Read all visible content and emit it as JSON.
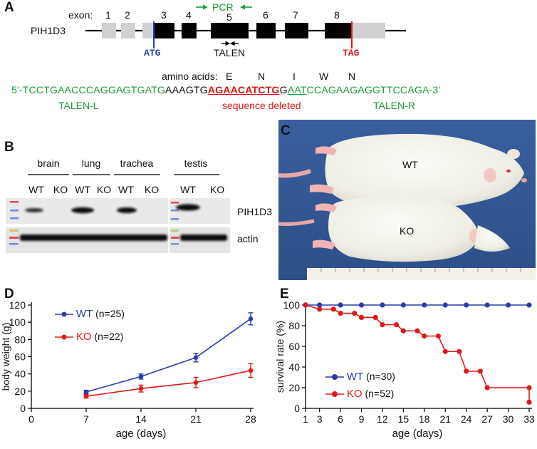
{
  "panelA": {
    "letter": "A",
    "exon_label": "exon:",
    "exon_numbers": [
      "1",
      "2",
      "3",
      "4",
      "5",
      "6",
      "7",
      "8"
    ],
    "gene": "PIH1D3",
    "pcr": "PCR",
    "talen": "TALEN",
    "atg": "ATG",
    "tag": "TAG",
    "amino_acids_label": "amino acids:",
    "amino_acids": [
      "E",
      "N",
      "I",
      "W",
      "N"
    ],
    "seq_part1": "5'-TCCTGAACCCAGGAGTGATG",
    "seq_part2": "AAAGTG",
    "seq_deleted": "AGAACATCTG",
    "seq_part3": "G",
    "seq_part4": "AAT",
    "seq_part5": "CCAGAAGAGGTTCCAGA-3'",
    "talen_l": "TALEN-L",
    "deleted_label": "sequence deleted",
    "talen_r": "TALEN-R",
    "colors": {
      "green": "#1e9a3c",
      "red": "#e01818",
      "blue": "#2a3ba8"
    }
  },
  "panelB": {
    "letter": "B",
    "tissues": [
      "brain",
      "lung",
      "trachea",
      "testis"
    ],
    "lanes": [
      "WT",
      "KO",
      "WT",
      "KO",
      "WT",
      "KO",
      "WT",
      "KO"
    ],
    "band1": "PIH1D3",
    "band2": "actin"
  },
  "panelC": {
    "letter": "C",
    "label_wt": "WT",
    "label_ko": "KO"
  },
  "panelD": {
    "letter": "D",
    "legend_wt": "WT",
    "legend_wt_n": "(n=25)",
    "legend_ko": "KO",
    "legend_ko_n": "(n=22)"
  },
  "panelE": {
    "letter": "E",
    "legend_wt": "WT",
    "legend_wt_n": "(n=30)",
    "legend_ko": "KO",
    "legend_ko_n": "(n=52)"
  },
  "chart_data": [
    {
      "type": "line",
      "xlabel": "age (days)",
      "ylabel": "body weight (g)",
      "xlim": [
        0,
        28
      ],
      "ylim": [
        0,
        120
      ],
      "xticks": [
        0,
        7,
        14,
        21,
        28
      ],
      "yticks": [
        0,
        20,
        40,
        60,
        80,
        100,
        120
      ],
      "x": [
        7,
        14,
        21,
        28
      ],
      "series": [
        {
          "name": "WT",
          "values": [
            19,
            37,
            59,
            104
          ],
          "errors": [
            2,
            3,
            5,
            7
          ],
          "color": "#2a3ba8"
        },
        {
          "name": "KO",
          "values": [
            14,
            23,
            30,
            44
          ],
          "errors": [
            2,
            4,
            6,
            8
          ],
          "color": "#e01818"
        }
      ]
    },
    {
      "type": "line",
      "step": true,
      "xlabel": "age (days)",
      "ylabel": "survival rate (%)",
      "xlim": [
        1,
        33
      ],
      "ylim": [
        0,
        100
      ],
      "xticks": [
        1,
        3,
        6,
        9,
        12,
        15,
        18,
        21,
        24,
        27,
        30,
        33
      ],
      "yticks": [
        0,
        20,
        40,
        60,
        80,
        100
      ],
      "series": [
        {
          "name": "WT",
          "color": "#2a3ba8",
          "x": [
            1,
            3,
            6,
            9,
            12,
            15,
            18,
            21,
            24,
            27,
            30,
            33
          ],
          "values": [
            100,
            100,
            100,
            100,
            100,
            100,
            100,
            100,
            100,
            100,
            100,
            100
          ]
        },
        {
          "name": "KO",
          "color": "#e01818",
          "x": [
            1,
            3,
            5,
            6,
            8,
            9,
            11,
            12,
            14,
            15,
            17,
            18,
            20,
            21,
            23,
            24,
            26,
            27,
            33,
            33
          ],
          "values": [
            100,
            96,
            96,
            92,
            92,
            88,
            88,
            81,
            81,
            75,
            75,
            70,
            70,
            55,
            55,
            36,
            36,
            20,
            20,
            6
          ]
        }
      ]
    }
  ]
}
